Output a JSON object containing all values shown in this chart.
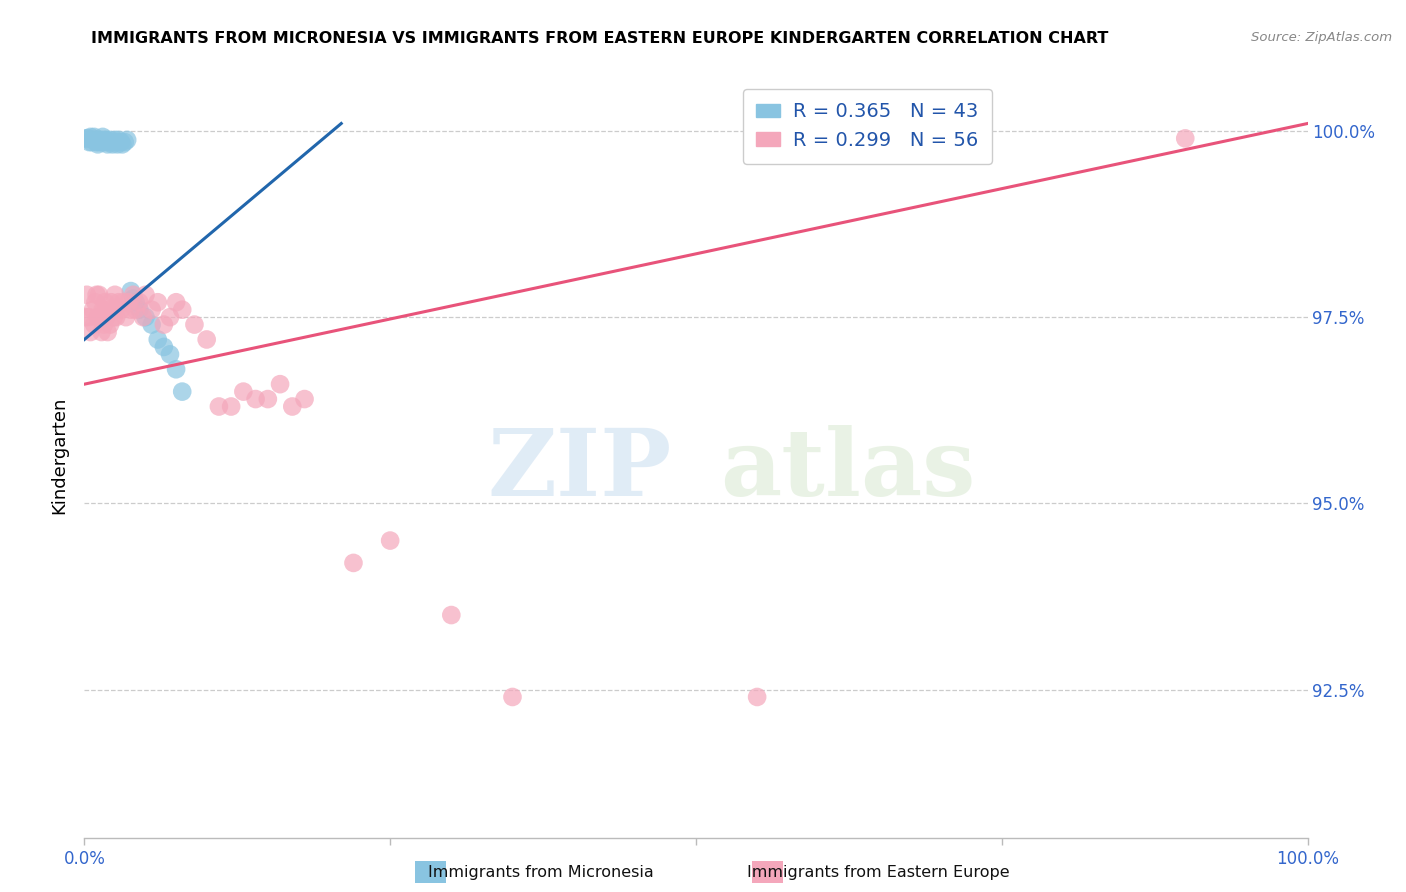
{
  "title": "IMMIGRANTS FROM MICRONESIA VS IMMIGRANTS FROM EASTERN EUROPE KINDERGARTEN CORRELATION CHART",
  "source": "Source: ZipAtlas.com",
  "ylabel": "Kindergarten",
  "ytick_labels": [
    "100.0%",
    "97.5%",
    "95.0%",
    "92.5%"
  ],
  "ytick_values": [
    1.0,
    0.975,
    0.95,
    0.925
  ],
  "xrange": [
    0.0,
    1.0
  ],
  "yrange": [
    0.905,
    1.008
  ],
  "legend_blue_R": "R = 0.365",
  "legend_blue_N": "N = 43",
  "legend_pink_R": "R = 0.299",
  "legend_pink_N": "N = 56",
  "label_blue": "Immigrants from Micronesia",
  "label_pink": "Immigrants from Eastern Europe",
  "blue_color": "#89c4e1",
  "pink_color": "#f4a7bb",
  "blue_line_color": "#2166ac",
  "pink_line_color": "#e8537a",
  "watermark_zip": "ZIP",
  "watermark_atlas": "atlas",
  "blue_line_x": [
    0.0,
    0.21
  ],
  "blue_line_y": [
    0.972,
    1.001
  ],
  "pink_line_x": [
    0.0,
    1.0
  ],
  "pink_line_y": [
    0.966,
    1.001
  ],
  "blue_points_x": [
    0.001,
    0.003,
    0.004,
    0.005,
    0.006,
    0.007,
    0.008,
    0.009,
    0.01,
    0.011,
    0.011,
    0.012,
    0.013,
    0.014,
    0.015,
    0.015,
    0.016,
    0.017,
    0.018,
    0.019,
    0.02,
    0.021,
    0.022,
    0.023,
    0.025,
    0.026,
    0.027,
    0.028,
    0.03,
    0.031,
    0.033,
    0.035,
    0.038,
    0.04,
    0.042,
    0.045,
    0.05,
    0.055,
    0.06,
    0.065,
    0.07,
    0.075,
    0.08
  ],
  "blue_points_y": [
    0.999,
    0.999,
    0.9985,
    0.9992,
    0.9985,
    0.9988,
    0.9992,
    0.9988,
    0.9985,
    0.9988,
    0.9982,
    0.9985,
    0.9988,
    0.9985,
    0.9992,
    0.9985,
    0.9988,
    0.9985,
    0.9988,
    0.9982,
    0.9985,
    0.9988,
    0.9985,
    0.9982,
    0.9988,
    0.9985,
    0.9982,
    0.9988,
    0.9985,
    0.9982,
    0.9985,
    0.9988,
    0.9785,
    0.9775,
    0.977,
    0.976,
    0.975,
    0.974,
    0.972,
    0.971,
    0.97,
    0.968,
    0.965
  ],
  "pink_points_x": [
    0.001,
    0.002,
    0.004,
    0.005,
    0.007,
    0.008,
    0.009,
    0.01,
    0.011,
    0.012,
    0.013,
    0.014,
    0.015,
    0.016,
    0.017,
    0.018,
    0.019,
    0.02,
    0.021,
    0.022,
    0.024,
    0.025,
    0.026,
    0.028,
    0.03,
    0.032,
    0.034,
    0.036,
    0.038,
    0.04,
    0.042,
    0.045,
    0.048,
    0.05,
    0.055,
    0.06,
    0.065,
    0.07,
    0.075,
    0.08,
    0.09,
    0.1,
    0.11,
    0.12,
    0.13,
    0.14,
    0.15,
    0.16,
    0.17,
    0.18,
    0.22,
    0.25,
    0.3,
    0.35,
    0.55,
    0.9
  ],
  "pink_points_y": [
    0.975,
    0.978,
    0.975,
    0.973,
    0.976,
    0.974,
    0.977,
    0.978,
    0.975,
    0.978,
    0.975,
    0.973,
    0.976,
    0.974,
    0.977,
    0.975,
    0.973,
    0.976,
    0.974,
    0.977,
    0.975,
    0.978,
    0.975,
    0.977,
    0.976,
    0.977,
    0.975,
    0.977,
    0.976,
    0.978,
    0.976,
    0.977,
    0.975,
    0.978,
    0.976,
    0.977,
    0.974,
    0.975,
    0.977,
    0.976,
    0.974,
    0.972,
    0.963,
    0.963,
    0.965,
    0.964,
    0.964,
    0.966,
    0.963,
    0.964,
    0.942,
    0.945,
    0.935,
    0.924,
    0.924,
    0.999
  ]
}
